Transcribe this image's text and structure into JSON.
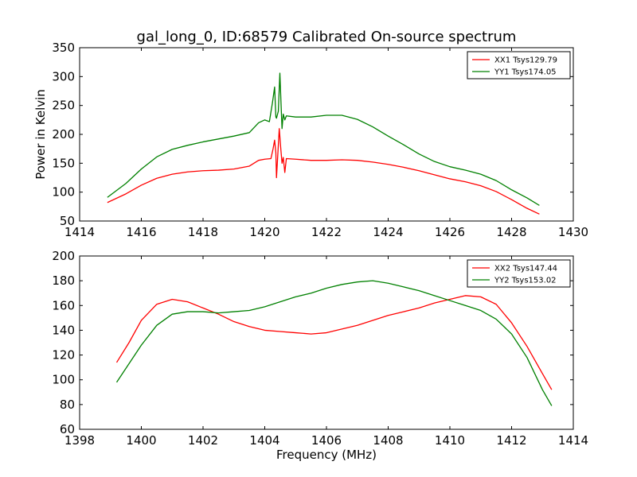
{
  "chart_data": [
    {
      "type": "line",
      "title": "gal_long_0, ID:68579 Calibrated On-source spectrum",
      "xlabel": "",
      "ylabel": "Power in Kelvin",
      "xlim": [
        1414,
        1430
      ],
      "ylim": [
        50,
        350
      ],
      "xticks": [
        1414,
        1416,
        1418,
        1420,
        1422,
        1424,
        1426,
        1428,
        1430
      ],
      "yticks": [
        50,
        100,
        150,
        200,
        250,
        300,
        350
      ],
      "legend_position": "top-right",
      "series": [
        {
          "name": "XX1 Tsys129.79",
          "color": "#ff0000",
          "points": [
            [
              1414.9,
              82
            ],
            [
              1415.5,
              97
            ],
            [
              1416.0,
              112
            ],
            [
              1416.5,
              124
            ],
            [
              1417.0,
              131
            ],
            [
              1417.5,
              135
            ],
            [
              1418.0,
              137
            ],
            [
              1418.5,
              138
            ],
            [
              1419.0,
              140
            ],
            [
              1419.5,
              145
            ],
            [
              1419.8,
              155
            ],
            [
              1420.0,
              157
            ],
            [
              1420.2,
              158
            ],
            [
              1420.27,
              175
            ],
            [
              1420.32,
              190
            ],
            [
              1420.36,
              168
            ],
            [
              1420.38,
              125
            ],
            [
              1420.42,
              162
            ],
            [
              1420.47,
              210
            ],
            [
              1420.52,
              175
            ],
            [
              1420.56,
              150
            ],
            [
              1420.6,
              160
            ],
            [
              1420.65,
              134
            ],
            [
              1420.7,
              158
            ],
            [
              1421.0,
              157
            ],
            [
              1421.5,
              155
            ],
            [
              1422.0,
              155
            ],
            [
              1422.5,
              156
            ],
            [
              1423.0,
              155
            ],
            [
              1423.5,
              152
            ],
            [
              1424.0,
              148
            ],
            [
              1424.5,
              143
            ],
            [
              1425.0,
              137
            ],
            [
              1425.5,
              130
            ],
            [
              1426.0,
              123
            ],
            [
              1426.5,
              118
            ],
            [
              1427.0,
              111
            ],
            [
              1427.5,
              101
            ],
            [
              1428.0,
              87
            ],
            [
              1428.5,
              72
            ],
            [
              1428.9,
              62
            ]
          ]
        },
        {
          "name": "YY1 Tsys174.05",
          "color": "#008000",
          "points": [
            [
              1414.9,
              91
            ],
            [
              1415.5,
              115
            ],
            [
              1416.0,
              140
            ],
            [
              1416.5,
              161
            ],
            [
              1417.0,
              174
            ],
            [
              1417.5,
              181
            ],
            [
              1418.0,
              187
            ],
            [
              1418.5,
              192
            ],
            [
              1419.0,
              197
            ],
            [
              1419.5,
              203
            ],
            [
              1419.8,
              220
            ],
            [
              1420.0,
              225
            ],
            [
              1420.15,
              222
            ],
            [
              1420.25,
              255
            ],
            [
              1420.32,
              282
            ],
            [
              1420.36,
              230
            ],
            [
              1420.38,
              228
            ],
            [
              1420.44,
              240
            ],
            [
              1420.49,
              306
            ],
            [
              1420.53,
              250
            ],
            [
              1420.56,
              210
            ],
            [
              1420.6,
              235
            ],
            [
              1420.65,
              225
            ],
            [
              1420.7,
              232
            ],
            [
              1421.0,
              230
            ],
            [
              1421.5,
              230
            ],
            [
              1422.0,
              233
            ],
            [
              1422.5,
              233
            ],
            [
              1423.0,
              226
            ],
            [
              1423.5,
              213
            ],
            [
              1424.0,
              197
            ],
            [
              1424.5,
              182
            ],
            [
              1425.0,
              166
            ],
            [
              1425.5,
              153
            ],
            [
              1426.0,
              144
            ],
            [
              1426.5,
              138
            ],
            [
              1427.0,
              131
            ],
            [
              1427.5,
              120
            ],
            [
              1428.0,
              104
            ],
            [
              1428.5,
              90
            ],
            [
              1428.9,
              77
            ]
          ]
        }
      ]
    },
    {
      "type": "line",
      "title": "",
      "xlabel": "Frequency (MHz)",
      "ylabel": "",
      "xlim": [
        1398,
        1414
      ],
      "ylim": [
        60,
        200
      ],
      "xticks": [
        1398,
        1400,
        1402,
        1404,
        1406,
        1408,
        1410,
        1412,
        1414
      ],
      "yticks": [
        60,
        80,
        100,
        120,
        140,
        160,
        180,
        200
      ],
      "legend_position": "top-right",
      "series": [
        {
          "name": "XX2 Tsys147.44",
          "color": "#ff0000",
          "points": [
            [
              1399.2,
              114
            ],
            [
              1399.6,
              130
            ],
            [
              1400.0,
              148
            ],
            [
              1400.5,
              161
            ],
            [
              1401.0,
              165
            ],
            [
              1401.5,
              163
            ],
            [
              1402.0,
              158
            ],
            [
              1402.5,
              153
            ],
            [
              1403.0,
              147
            ],
            [
              1403.5,
              143
            ],
            [
              1404.0,
              140
            ],
            [
              1404.5,
              139
            ],
            [
              1405.0,
              138
            ],
            [
              1405.5,
              137
            ],
            [
              1406.0,
              138
            ],
            [
              1406.5,
              141
            ],
            [
              1407.0,
              144
            ],
            [
              1407.5,
              148
            ],
            [
              1408.0,
              152
            ],
            [
              1408.5,
              155
            ],
            [
              1409.0,
              158
            ],
            [
              1409.5,
              162
            ],
            [
              1410.0,
              165
            ],
            [
              1410.5,
              168
            ],
            [
              1411.0,
              167
            ],
            [
              1411.5,
              161
            ],
            [
              1412.0,
              146
            ],
            [
              1412.5,
              127
            ],
            [
              1413.0,
              105
            ],
            [
              1413.3,
              92
            ]
          ]
        },
        {
          "name": "YY2 Tsys153.02",
          "color": "#008000",
          "points": [
            [
              1399.2,
              98
            ],
            [
              1399.6,
              113
            ],
            [
              1400.0,
              128
            ],
            [
              1400.5,
              144
            ],
            [
              1401.0,
              153
            ],
            [
              1401.5,
              155
            ],
            [
              1402.0,
              155
            ],
            [
              1402.5,
              154
            ],
            [
              1403.0,
              155
            ],
            [
              1403.5,
              156
            ],
            [
              1404.0,
              159
            ],
            [
              1404.5,
              163
            ],
            [
              1405.0,
              167
            ],
            [
              1405.5,
              170
            ],
            [
              1406.0,
              174
            ],
            [
              1406.5,
              177
            ],
            [
              1407.0,
              179
            ],
            [
              1407.5,
              180
            ],
            [
              1408.0,
              178
            ],
            [
              1408.5,
              175
            ],
            [
              1409.0,
              172
            ],
            [
              1409.5,
              168
            ],
            [
              1410.0,
              164
            ],
            [
              1410.5,
              160
            ],
            [
              1411.0,
              156
            ],
            [
              1411.5,
              149
            ],
            [
              1412.0,
              137
            ],
            [
              1412.5,
              118
            ],
            [
              1413.0,
              92
            ],
            [
              1413.3,
              79
            ]
          ]
        }
      ]
    }
  ]
}
